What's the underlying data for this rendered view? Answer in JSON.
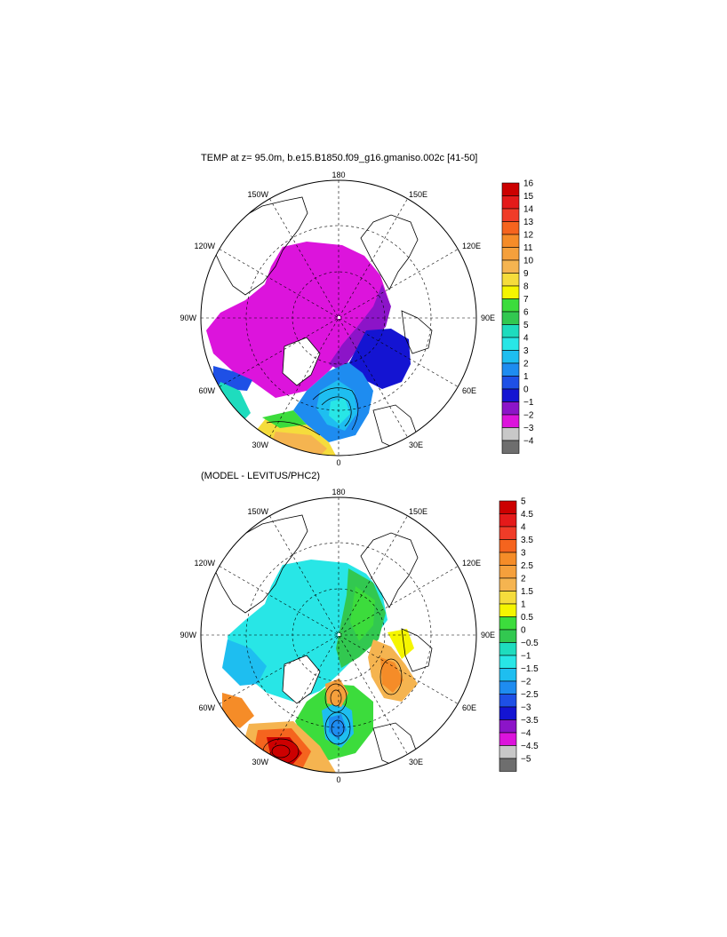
{
  "panels": [
    {
      "title": "TEMP at z=  95.0m, b.e15.B1850.f09_g16.gmaniso.002c [41-50]",
      "longitude_labels": {
        "top": "180",
        "bottom": "0",
        "left": "90W",
        "right": "90E",
        "upper_left_1": "150W",
        "upper_left_2": "120W",
        "lower_left_1": "60W",
        "lower_left_2": "30W",
        "upper_right_1": "150E",
        "upper_right_2": "120E",
        "lower_right_1": "60E",
        "lower_right_2": "30E"
      },
      "colorbar": {
        "labels": [
          "16",
          "15",
          "14",
          "13",
          "12",
          "11",
          "10",
          "9",
          "8",
          "7",
          "6",
          "5",
          "4",
          "3",
          "2",
          "1",
          "0",
          "−1",
          "−2",
          "−3",
          "−4"
        ],
        "colors": [
          "#cc0000",
          "#e41a1a",
          "#f03c28",
          "#f5641e",
          "#f58c28",
          "#f5a03c",
          "#f5b450",
          "#f5dc3c",
          "#f5f500",
          "#3cdc3c",
          "#32c850",
          "#1edcbe",
          "#28e6e6",
          "#1ebef0",
          "#1e8cf0",
          "#1e50e6",
          "#1414d2",
          "#8c14c8",
          "#dc14dc",
          "#c8c8c8",
          "#6e6e6e"
        ]
      }
    },
    {
      "title": "(MODEL - LEVITUS/PHC2)",
      "longitude_labels": {
        "top": "180",
        "bottom": "0",
        "left": "90W",
        "right": "90E",
        "upper_left_1": "150W",
        "upper_left_2": "120W",
        "lower_left_1": "60W",
        "lower_left_2": "30W",
        "upper_right_1": "150E",
        "upper_right_2": "120E",
        "lower_right_1": "60E",
        "lower_right_2": "30E"
      },
      "colorbar": {
        "labels": [
          "5",
          "4.5",
          "4",
          "3.5",
          "3",
          "2.5",
          "2",
          "1.5",
          "1",
          "0.5",
          "0",
          "−0.5",
          "−1",
          "−1.5",
          "−2",
          "−2.5",
          "−3",
          "−3.5",
          "−4",
          "−4.5",
          "−5"
        ],
        "colors": [
          "#cc0000",
          "#e41a1a",
          "#f03c28",
          "#f5641e",
          "#f58c28",
          "#f5a03c",
          "#f5b450",
          "#f5dc3c",
          "#f5f500",
          "#3cdc3c",
          "#32c850",
          "#1edcbe",
          "#28e6e6",
          "#1ebef0",
          "#1e8cf0",
          "#1e50e6",
          "#1414d2",
          "#8c14c8",
          "#dc14dc",
          "#c8c8c8",
          "#6e6e6e"
        ]
      }
    }
  ]
}
